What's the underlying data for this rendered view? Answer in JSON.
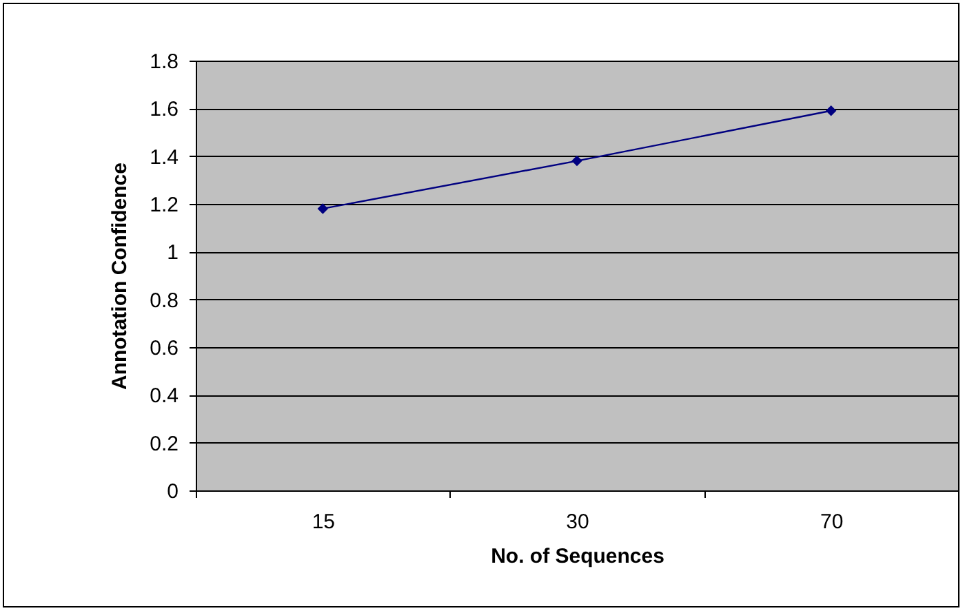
{
  "chart_data": {
    "type": "line",
    "xlabel": "No. of Sequences",
    "ylabel": "Annotation Confidence",
    "categories": [
      "15",
      "30",
      "70"
    ],
    "series": [
      {
        "color": "#000080",
        "values": [
          1.18,
          1.38,
          1.59
        ]
      }
    ],
    "ylim": [
      0,
      1.8
    ],
    "yticks": [
      0,
      0.2,
      0.4,
      0.6,
      0.8,
      1,
      1.2,
      1.4,
      1.6,
      1.8
    ],
    "grid": "y",
    "legend": false,
    "marker": "diamond",
    "line_style": "solid"
  }
}
